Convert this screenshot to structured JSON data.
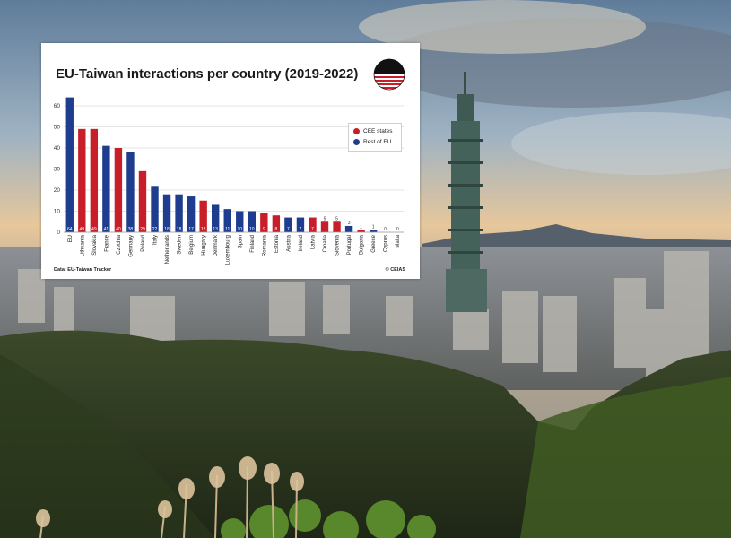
{
  "colors": {
    "cee": "#c81e2a",
    "rest": "#1f3d8e"
  },
  "card": {
    "source": "Data: EU-Taiwan Tracker",
    "credit": "© CEIAS"
  },
  "logo": {
    "name": "ceias-logo-icon"
  },
  "chart_data": {
    "type": "bar",
    "title": "EU-Taiwan interactions per country (2019-2022)",
    "xlabel": "",
    "ylabel": "",
    "ylim": [
      0,
      60
    ],
    "yticks": [
      0,
      10,
      20,
      30,
      40,
      50,
      60
    ],
    "grid": true,
    "legend_position": "top-right",
    "legend": [
      {
        "label": "CEE states",
        "group": "cee"
      },
      {
        "label": "Rest of EU",
        "group": "rest"
      }
    ],
    "categories": [
      "EU",
      "Lithuania",
      "Slovakia",
      "France",
      "Czechia",
      "Germany",
      "Poland",
      "Italy",
      "Netherlands",
      "Sweden",
      "Belgium",
      "Hungary",
      "Denmark",
      "Luxembourg",
      "Spain",
      "Finland",
      "Romania",
      "Estonia",
      "Austria",
      "Ireland",
      "Latvia",
      "Croatia",
      "Slovenia",
      "Portugal",
      "Bulgaria",
      "Greece",
      "Cyprus",
      "Malta"
    ],
    "values": [
      64,
      49,
      49,
      41,
      40,
      38,
      29,
      22,
      18,
      18,
      17,
      15,
      13,
      11,
      10,
      10,
      9,
      8,
      7,
      7,
      7,
      5,
      5,
      3,
      1,
      1,
      0,
      0
    ],
    "groups": [
      "rest",
      "cee",
      "cee",
      "rest",
      "cee",
      "rest",
      "cee",
      "rest",
      "rest",
      "rest",
      "rest",
      "cee",
      "rest",
      "rest",
      "rest",
      "rest",
      "cee",
      "cee",
      "rest",
      "rest",
      "cee",
      "cee",
      "cee",
      "rest",
      "cee",
      "rest",
      "rest",
      "rest"
    ]
  }
}
